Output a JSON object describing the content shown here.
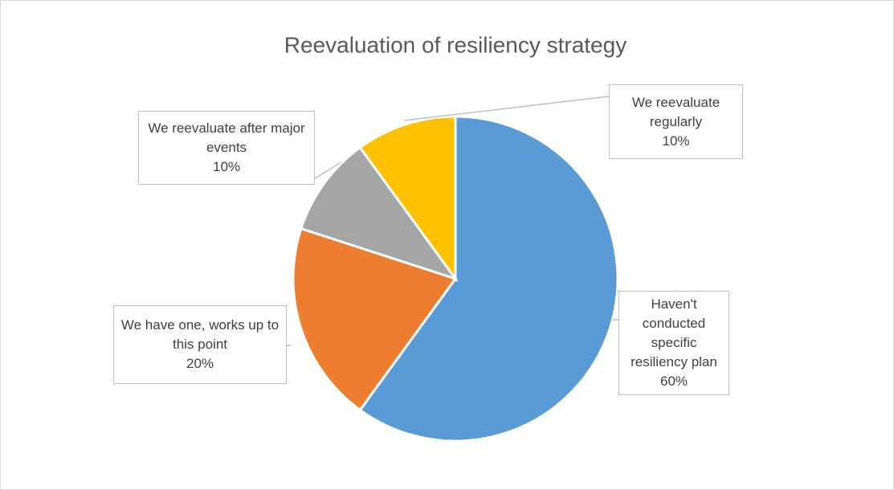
{
  "chart_data": {
    "type": "pie",
    "title": "Reevaluation of resiliency strategy",
    "categories": [
      "Haven't conducted specific resiliency plan",
      "We have one, works up to this point",
      "We reevaluate after major events",
      "We reevaluate regularly"
    ],
    "values": [
      60,
      20,
      10,
      10
    ],
    "value_labels": [
      "60%",
      "20%",
      "10%",
      "10%"
    ],
    "colors": [
      "#5b9bd5",
      "#ed7d31",
      "#a5a5a5",
      "#ffc000"
    ]
  }
}
